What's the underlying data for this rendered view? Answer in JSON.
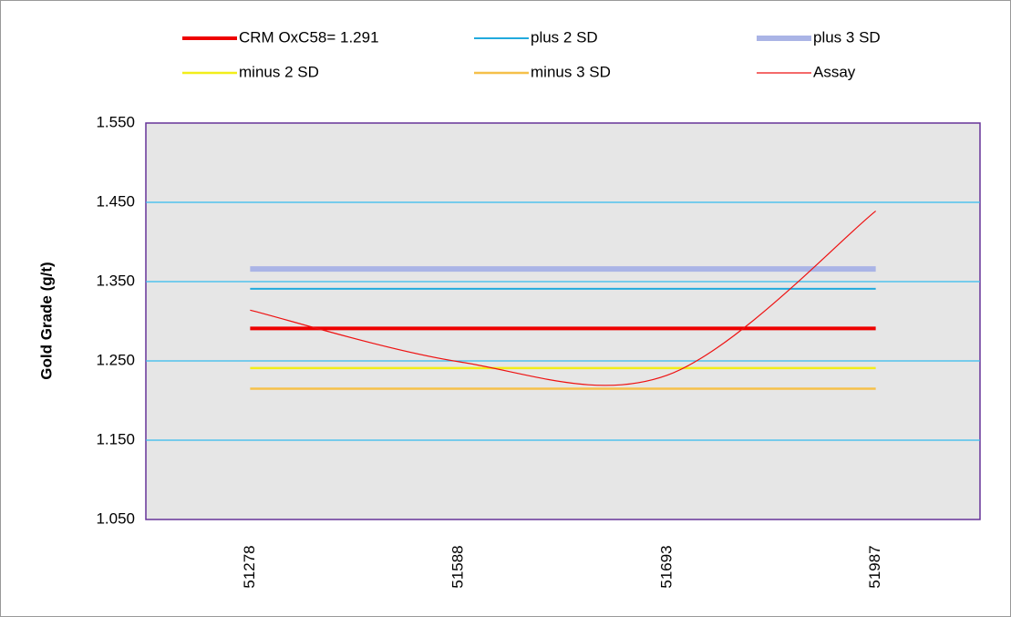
{
  "chart_data": {
    "type": "line",
    "y_label": "Gold Grade (g/t)",
    "categories": [
      "51278",
      "51588",
      "51693",
      "51987"
    ],
    "series": [
      {
        "name": "CRM OxC58= 1.291",
        "color": "#ee0000",
        "width": 4,
        "values": [
          1.291,
          1.291,
          1.291,
          1.291
        ]
      },
      {
        "name": "plus 2 SD",
        "color": "#22aadd",
        "width": 2,
        "values": [
          1.341,
          1.341,
          1.341,
          1.341
        ]
      },
      {
        "name": "plus 3 SD",
        "color": "#aab4e6",
        "width": 6,
        "values": [
          1.366,
          1.366,
          1.366,
          1.366
        ]
      },
      {
        "name": "minus 2 SD",
        "color": "#f2ee1a",
        "width": 2.5,
        "values": [
          1.241,
          1.241,
          1.241,
          1.241
        ]
      },
      {
        "name": "minus 3 SD",
        "color": "#f5c04a",
        "width": 2.5,
        "values": [
          1.215,
          1.215,
          1.215,
          1.215
        ]
      },
      {
        "name": "Assay",
        "color": "#ee1111",
        "width": 1.2,
        "smooth": true,
        "values": [
          1.314,
          1.249,
          1.232,
          1.439
        ]
      }
    ],
    "ylim": [
      1.05,
      1.55
    ],
    "yticks": [
      {
        "value": 1.05,
        "label": "1.050"
      },
      {
        "value": 1.15,
        "label": "1.150"
      },
      {
        "value": 1.25,
        "label": "1.250"
      },
      {
        "value": 1.35,
        "label": "1.350"
      },
      {
        "value": 1.45,
        "label": "1.450"
      },
      {
        "value": 1.55,
        "label": "1.550"
      }
    ],
    "grid": true,
    "grid_color": "#33bbee",
    "legend": "top"
  }
}
